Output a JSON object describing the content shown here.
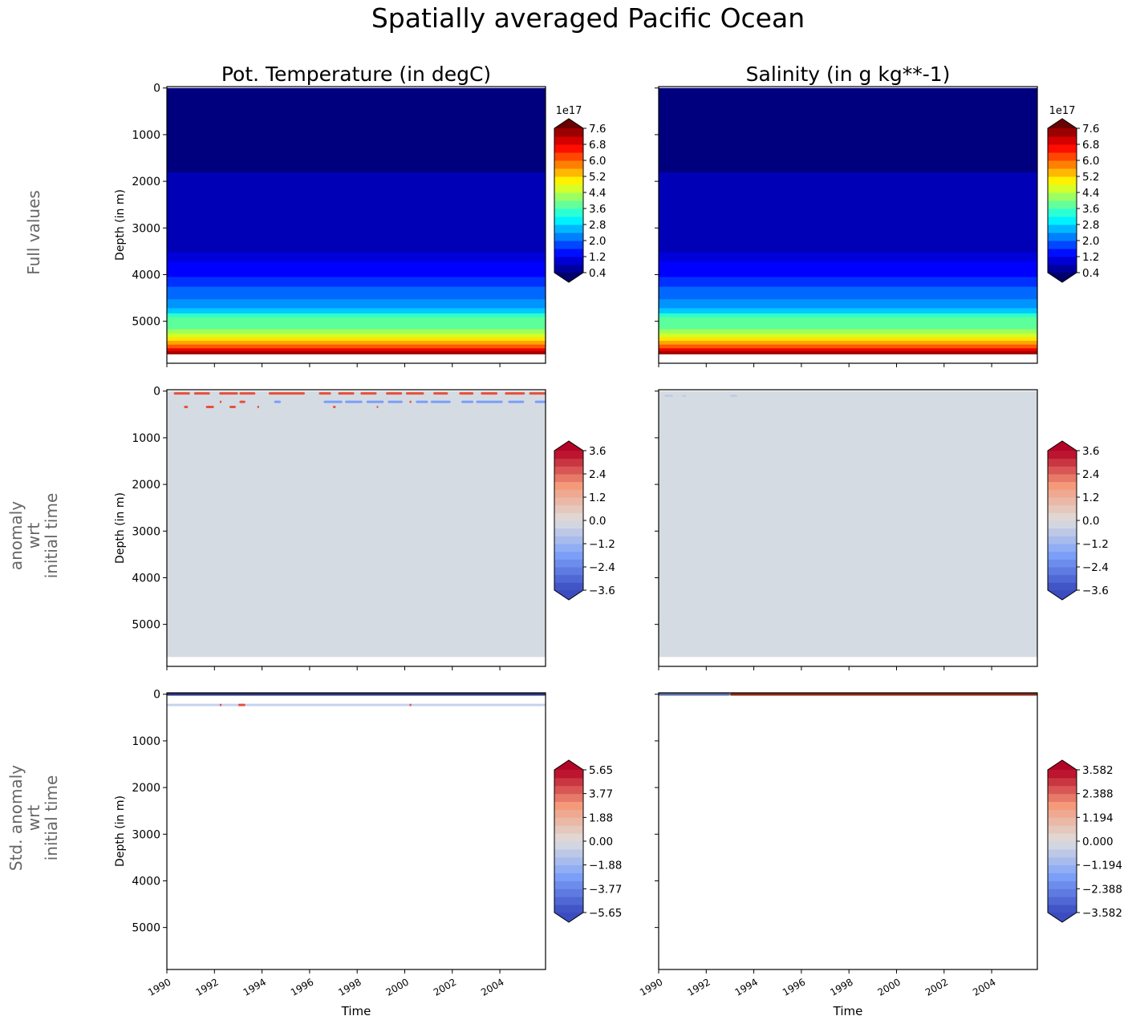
{
  "title": "Spatially averaged Pacific Ocean",
  "columns": [
    "Pot. Temperature (in degC)",
    "Salinity (in g kg**-1)"
  ],
  "row_labels": [
    [
      "Full values"
    ],
    [
      "anomaly",
      "wrt",
      "initial time"
    ],
    [
      "Std. anomaly",
      "wrt",
      "initial time"
    ]
  ],
  "chart_data": {
    "type": "heatmap",
    "subtype": "filled contour (depth vs time)",
    "xlabel": "Time",
    "ylabel": "Depth (in m)",
    "xlim": [
      1990,
      2005.92
    ],
    "ylim": [
      5900,
      -30
    ],
    "y_inverted": true,
    "x_ticks": [
      "1990",
      "1992",
      "1994",
      "1996",
      "1998",
      "2000",
      "2002",
      "2004"
    ],
    "y_ticks": [
      "0",
      "1000",
      "2000",
      "3000",
      "4000",
      "5000"
    ],
    "grid": false,
    "panels": [
      {
        "row": 0,
        "col": 0,
        "cmap": "jet",
        "colorbar": {
          "exponent": "1e17",
          "ticks": [
            "7.6",
            "6.8",
            "6.0",
            "5.2",
            "4.4",
            "3.6",
            "2.8",
            "2.0",
            "1.2",
            "0.4"
          ],
          "min": 0.4,
          "max": 7.6,
          "step": 0.4,
          "extend": "both"
        },
        "bands": [
          [
            0,
            1810,
            "#00007f"
          ],
          [
            1810,
            3520,
            "#0000b6"
          ],
          [
            3520,
            3720,
            "#0000da"
          ],
          [
            3720,
            4050,
            "#0000ff"
          ],
          [
            4050,
            4260,
            "#0030ff"
          ],
          [
            4260,
            4530,
            "#0068ff"
          ],
          [
            4530,
            4720,
            "#0094ff"
          ],
          [
            4720,
            4830,
            "#00c8ff"
          ],
          [
            4830,
            4910,
            "#29ffce"
          ],
          [
            4910,
            5170,
            "#5cff9a"
          ],
          [
            5170,
            5260,
            "#9cff5a"
          ],
          [
            5260,
            5340,
            "#ceff29"
          ],
          [
            5340,
            5420,
            "#ffe600"
          ],
          [
            5420,
            5500,
            "#ffa400"
          ],
          [
            5500,
            5580,
            "#ff5a00"
          ],
          [
            5580,
            5640,
            "#ee0000"
          ],
          [
            5640,
            5700,
            "#a40000"
          ]
        ]
      },
      {
        "row": 0,
        "col": 1,
        "cmap": "jet",
        "colorbar": {
          "exponent": "1e17",
          "ticks": [
            "7.6",
            "6.8",
            "6.0",
            "5.2",
            "4.4",
            "3.6",
            "2.8",
            "2.0",
            "1.2",
            "0.4"
          ],
          "min": 0.4,
          "max": 7.6,
          "step": 0.4,
          "extend": "both"
        },
        "bands": [
          [
            0,
            1810,
            "#00007f"
          ],
          [
            1810,
            3520,
            "#0000b6"
          ],
          [
            3520,
            3720,
            "#0000da"
          ],
          [
            3720,
            4050,
            "#0000ff"
          ],
          [
            4050,
            4260,
            "#0030ff"
          ],
          [
            4260,
            4530,
            "#0068ff"
          ],
          [
            4530,
            4720,
            "#0094ff"
          ],
          [
            4720,
            4830,
            "#00c8ff"
          ],
          [
            4830,
            4910,
            "#29ffce"
          ],
          [
            4910,
            5170,
            "#5cff9a"
          ],
          [
            5170,
            5260,
            "#9cff5a"
          ],
          [
            5260,
            5340,
            "#ceff29"
          ],
          [
            5340,
            5420,
            "#ffe600"
          ],
          [
            5420,
            5500,
            "#ffa400"
          ],
          [
            5500,
            5580,
            "#ff5a00"
          ],
          [
            5580,
            5640,
            "#ee0000"
          ],
          [
            5640,
            5700,
            "#a40000"
          ]
        ]
      },
      {
        "row": 1,
        "col": 0,
        "cmap": "coolwarm",
        "colorbar": {
          "ticks": [
            "3.6",
            "2.4",
            "1.2",
            "0.0",
            "−1.2",
            "−2.4",
            "−3.6"
          ],
          "min": -3.6,
          "max": 3.6,
          "step": 0.4,
          "extend": "both"
        },
        "background": {
          "depth": [
            0,
            5700
          ],
          "color": "#d5dbe3"
        },
        "features": [
          {
            "depth": 50,
            "color": "#e8503a",
            "years": [
              [
                1990.29,
                1990.97
              ],
              [
                1991.14,
                1991.81
              ],
              [
                1992.2,
                1992.99
              ],
              [
                1993.05,
                1993.72
              ],
              [
                1994.28,
                1995.8
              ],
              [
                1996.39,
                1996.9
              ],
              [
                1997.2,
                1997.88
              ],
              [
                1998.14,
                1998.82
              ],
              [
                1999.21,
                1999.89
              ],
              [
                2000.05,
                2000.81
              ],
              [
                2001.2,
                2001.82
              ],
              [
                2002.29,
                2002.89
              ],
              [
                2003.2,
                2003.9
              ],
              [
                2004.21,
                2005.05
              ],
              [
                2005.23,
                2005.92
              ]
            ]
          },
          {
            "depth": 230,
            "color": "#7a9ef8",
            "years": [
              [
                1994.51,
                1994.79
              ],
              [
                1996.59,
                1997.38
              ],
              [
                1997.49,
                1998.22
              ],
              [
                1998.39,
                1999.12
              ],
              [
                1999.29,
                1999.91
              ],
              [
                2000.47,
                2000.98
              ],
              [
                2001.09,
                2001.93
              ],
              [
                2002.38,
                2002.89
              ],
              [
                2003.0,
                2004.12
              ],
              [
                2004.35,
                2005.02
              ],
              [
                2005.47,
                2005.92
              ]
            ]
          },
          {
            "depth": 230,
            "color": "#e8503a",
            "years": [
              [
                1992.22,
                1992.3
              ],
              [
                1993.05,
                1993.3
              ],
              [
                2000.2,
                2000.28
              ]
            ]
          },
          {
            "depth": 340,
            "color": "#e8503a",
            "years": [
              [
                1990.72,
                1990.89
              ],
              [
                1991.64,
                1991.98
              ],
              [
                1992.63,
                1992.9
              ],
              [
                1993.8,
                1993.88
              ],
              [
                1996.98,
                1997.1
              ],
              [
                1998.82,
                1998.88
              ]
            ]
          }
        ]
      },
      {
        "row": 1,
        "col": 1,
        "cmap": "coolwarm",
        "colorbar": {
          "ticks": [
            "3.6",
            "2.4",
            "1.2",
            "0.0",
            "−1.2",
            "−2.4",
            "−3.6"
          ],
          "min": -3.6,
          "max": 3.6,
          "step": 0.4,
          "extend": "both"
        },
        "background": {
          "depth": [
            0,
            5700
          ],
          "color": "#d5dbe3"
        },
        "features": [
          {
            "depth": 100,
            "color": "#c2cde0",
            "years": [
              [
                1990.25,
                1990.6
              ],
              [
                1991.0,
                1991.15
              ],
              [
                1993.0,
                1993.3
              ]
            ]
          }
        ]
      },
      {
        "row": 2,
        "col": 0,
        "cmap": "coolwarm",
        "colorbar": {
          "ticks": [
            "5.65",
            "3.77",
            "1.88",
            "0.00",
            "−1.88",
            "−3.77",
            "−5.65"
          ],
          "min": -5.65,
          "max": 5.65,
          "step": 0.628,
          "extend": "both"
        },
        "background": {
          "depth": [
            0,
            5700
          ],
          "color": "#ffffff"
        },
        "features": [
          {
            "depth": 5,
            "color": "#2a3580",
            "years": [
              [
                1990.0,
                2005.92
              ]
            ]
          },
          {
            "depth": 230,
            "color": "#c5d3ee",
            "years": [
              [
                1990.0,
                2005.92
              ]
            ]
          },
          {
            "depth": 230,
            "color": "#e8503a",
            "years": [
              [
                1992.22,
                1992.3
              ],
              [
                1993.0,
                1993.3
              ],
              [
                2000.2,
                2000.28
              ]
            ]
          }
        ]
      },
      {
        "row": 2,
        "col": 1,
        "cmap": "coolwarm",
        "colorbar": {
          "ticks": [
            "3.582",
            "2.388",
            "1.194",
            "0.000",
            "−1.194",
            "−2.388",
            "−3.582"
          ],
          "min": -3.582,
          "max": 3.582,
          "step": 0.398,
          "extend": "both"
        },
        "background": {
          "depth": [
            0,
            5700
          ],
          "color": "#ffffff"
        },
        "features": [
          {
            "depth": 5,
            "color": "#5a6fa8",
            "years": [
              [
                1990.0,
                1993.0
              ]
            ]
          },
          {
            "depth": 5,
            "color": "#8a2a1a",
            "years": [
              [
                1993.0,
                2005.92
              ]
            ]
          }
        ]
      }
    ]
  }
}
